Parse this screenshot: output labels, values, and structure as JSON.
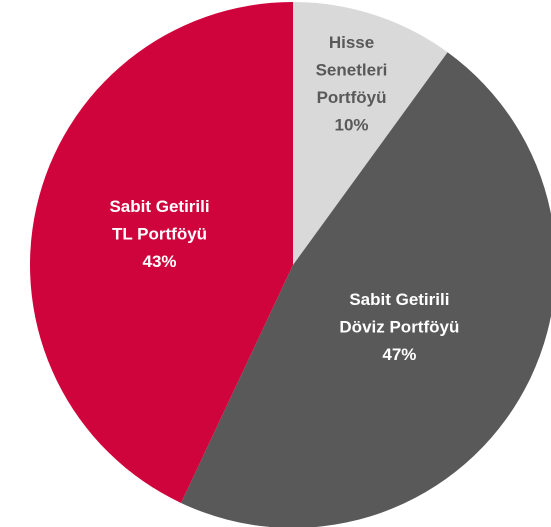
{
  "chart_data": {
    "type": "pie",
    "categories": [
      [
        "Hisse",
        "Senetleri",
        "Portföyü"
      ],
      [
        "Sabit Getirili",
        "Döviz Portföyü"
      ],
      [
        "Sabit Getirili",
        "TL Portföyü"
      ]
    ],
    "values": [
      10,
      47,
      43
    ],
    "value_labels": [
      "10%",
      "47%",
      "43%"
    ],
    "colors": [
      "#d9d9d9",
      "#595959",
      "#d0043c"
    ],
    "label_colors": [
      "#595959",
      "#ffffff",
      "#ffffff"
    ]
  }
}
